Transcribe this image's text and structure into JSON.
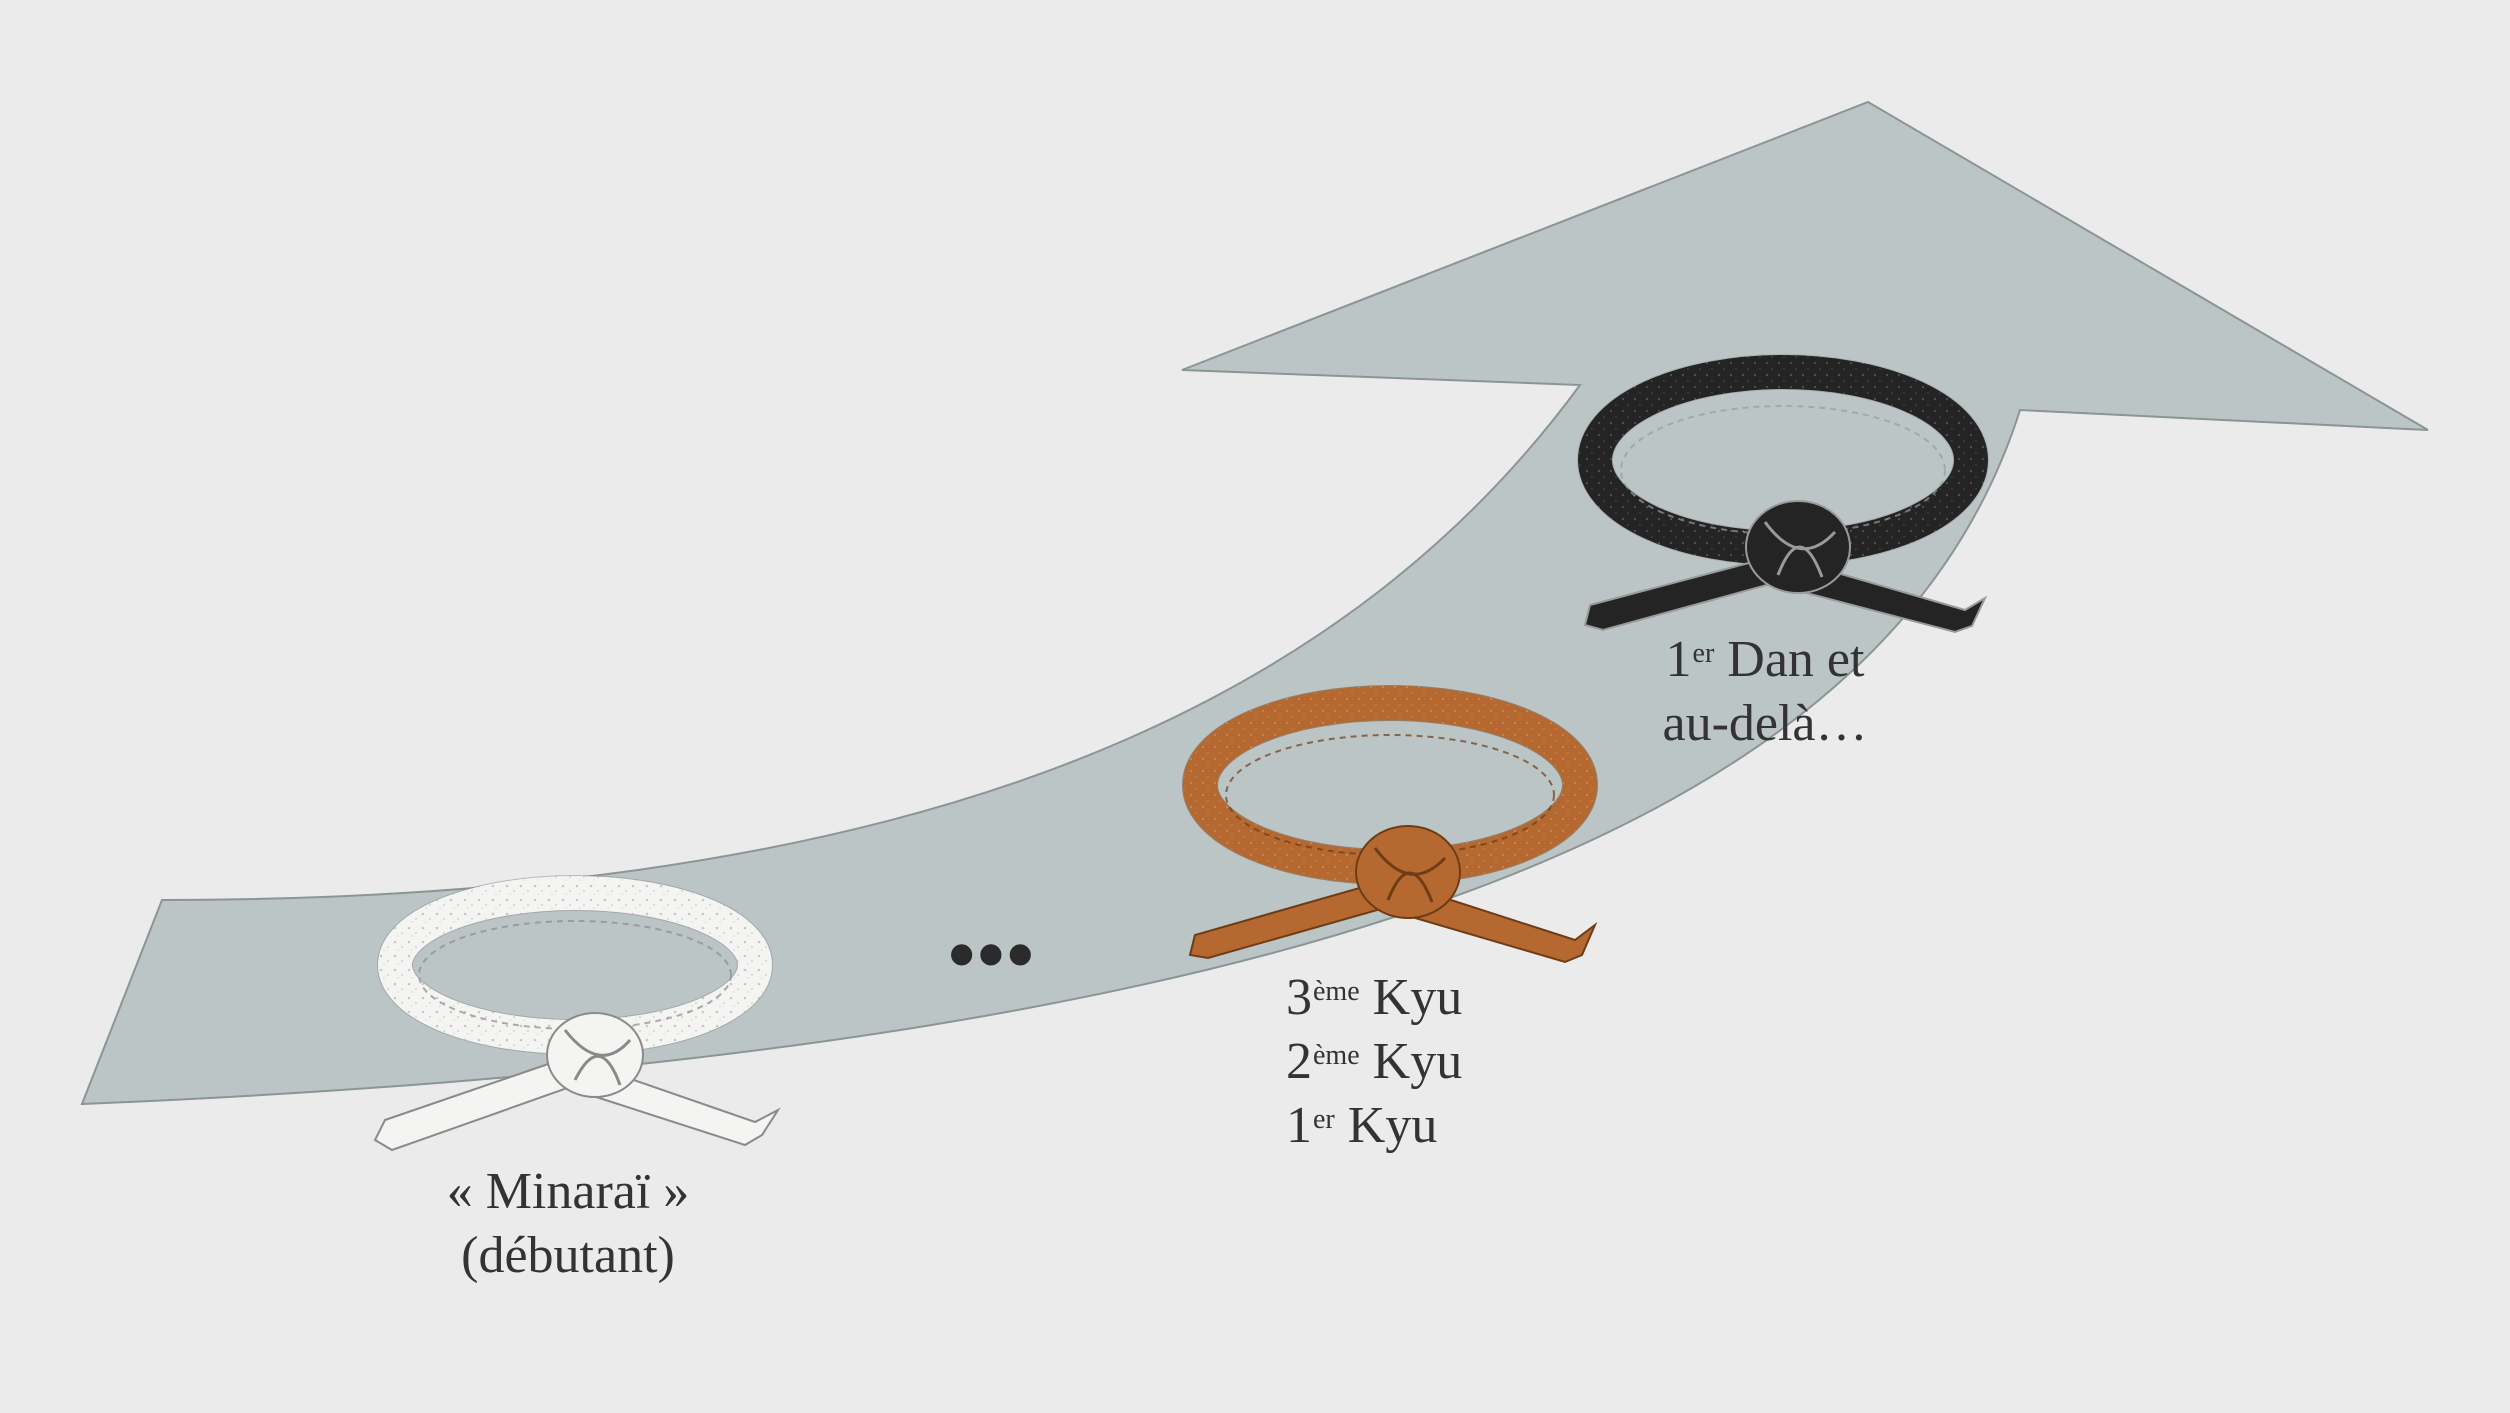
{
  "colors": {
    "background": "#ebebeb",
    "arrow_fill": "#bcc5c6",
    "arrow_stroke": "#8b9596",
    "white_belt": "#f4f4f2",
    "white_belt_edge": "#8a8a8a",
    "brown_belt": "#b5682f",
    "brown_belt_edge": "#6e3c16",
    "black_belt": "#242424",
    "black_belt_edge": "#9a9a9a",
    "text": "#333333"
  },
  "steps": [
    {
      "id": "white",
      "lines": [
        {
          "main": "« Minaraï »"
        },
        {
          "main": "(débutant)"
        }
      ]
    },
    {
      "id": "brown",
      "lines": [
        {
          "num": "3",
          "sup": "ème",
          "main": " Kyu"
        },
        {
          "num": "2",
          "sup": "ème",
          "main": " Kyu"
        },
        {
          "num": "1",
          "sup": "er",
          "main": " Kyu"
        }
      ]
    },
    {
      "id": "black",
      "lines": [
        {
          "num": "1",
          "sup": "er",
          "main": " Dan et"
        },
        {
          "main": "au-delà…"
        }
      ]
    }
  ],
  "ellipsis": "•••",
  "icons": [
    "white-belt-icon",
    "brown-belt-icon",
    "black-belt-icon"
  ]
}
